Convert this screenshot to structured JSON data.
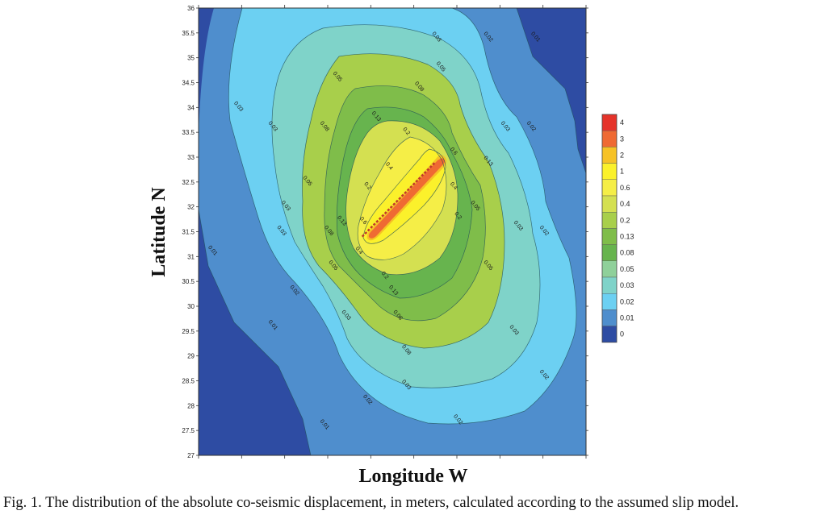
{
  "chart_data": {
    "type": "contour",
    "xlabel": "Longitude W",
    "ylabel": "Latitude N",
    "xlim": [
      -11.0,
      -2.0
    ],
    "ylim": [
      27,
      36
    ],
    "y_ticks": [
      "27",
      "27.5",
      "28",
      "28.5",
      "29",
      "29.5",
      "30",
      "30.5",
      "31",
      "31.5",
      "32",
      "32.5",
      "33",
      "33.5",
      "34",
      "34.5",
      "35",
      "35.5",
      "36"
    ],
    "x_tick_count": 10,
    "legend": {
      "levels": [
        "4",
        "3",
        "2",
        "1",
        "0.6",
        "0.4",
        "0.2",
        "0.13",
        "0.08",
        "0.05",
        "0.03",
        "0.02",
        "0.01",
        "0"
      ],
      "colors": [
        "#e5332a",
        "#ef6a33",
        "#f6c226",
        "#fbf12b",
        "#f5ee47",
        "#d4e051",
        "#a8cf4b",
        "#7fbd4a",
        "#67b44e",
        "#8fd09a",
        "#7fd3c9",
        "#6cd0f2",
        "#4f8ecd",
        "#2e4ca3"
      ]
    },
    "fault": {
      "from": [
        -7.2,
        31.4
      ],
      "to": [
        -5.5,
        32.9
      ]
    },
    "contour_labels": [
      {
        "text": "0.03",
        "x": -5.5,
        "y": 35.4
      },
      {
        "text": "0.02",
        "x": -4.3,
        "y": 35.4
      },
      {
        "text": "0.01",
        "x": -3.2,
        "y": 35.4
      },
      {
        "text": "0.05",
        "x": -7.8,
        "y": 34.6
      },
      {
        "text": "0.05",
        "x": -5.4,
        "y": 34.8
      },
      {
        "text": "0.08",
        "x": -5.9,
        "y": 34.4
      },
      {
        "text": "0.03",
        "x": -10.1,
        "y": 34.0
      },
      {
        "text": "0.03",
        "x": -9.3,
        "y": 33.6
      },
      {
        "text": "0.08",
        "x": -8.1,
        "y": 33.6
      },
      {
        "text": "0.13",
        "x": -6.9,
        "y": 33.8
      },
      {
        "text": "0.2",
        "x": -6.2,
        "y": 33.5
      },
      {
        "text": "0.03",
        "x": -3.9,
        "y": 33.6
      },
      {
        "text": "0.02",
        "x": -3.3,
        "y": 33.6
      },
      {
        "text": "0.4",
        "x": -6.6,
        "y": 32.8
      },
      {
        "text": "0.6",
        "x": -5.1,
        "y": 33.1
      },
      {
        "text": "0.13",
        "x": -4.3,
        "y": 32.9
      },
      {
        "text": "0.05",
        "x": -4.6,
        "y": 32.0
      },
      {
        "text": "0.2",
        "x": -7.1,
        "y": 32.4
      },
      {
        "text": "0.4",
        "x": -5.1,
        "y": 32.4
      },
      {
        "text": "0.2",
        "x": -5.0,
        "y": 31.8
      },
      {
        "text": "0.05",
        "x": -8.5,
        "y": 32.5
      },
      {
        "text": "0.03",
        "x": -9.0,
        "y": 32.0
      },
      {
        "text": "0.13",
        "x": -7.7,
        "y": 31.7
      },
      {
        "text": "0.6",
        "x": -7.2,
        "y": 31.7
      },
      {
        "text": "0.08",
        "x": -8.0,
        "y": 31.5
      },
      {
        "text": "0.4",
        "x": -7.3,
        "y": 31.1
      },
      {
        "text": "0.03",
        "x": -9.1,
        "y": 31.5
      },
      {
        "text": "0.01",
        "x": -10.7,
        "y": 31.1
      },
      {
        "text": "0.05",
        "x": -7.9,
        "y": 30.8
      },
      {
        "text": "0.2",
        "x": -6.7,
        "y": 30.6
      },
      {
        "text": "0.13",
        "x": -6.5,
        "y": 30.3
      },
      {
        "text": "0.03",
        "x": -3.6,
        "y": 31.6
      },
      {
        "text": "0.02",
        "x": -3.0,
        "y": 31.5
      },
      {
        "text": "0.05",
        "x": -4.3,
        "y": 30.8
      },
      {
        "text": "0.02",
        "x": -8.8,
        "y": 30.3
      },
      {
        "text": "0.03",
        "x": -7.6,
        "y": 29.8
      },
      {
        "text": "0.08",
        "x": -6.4,
        "y": 29.8
      },
      {
        "text": "0.01",
        "x": -9.3,
        "y": 29.6
      },
      {
        "text": "0.08",
        "x": -6.2,
        "y": 29.1
      },
      {
        "text": "0.03",
        "x": -3.7,
        "y": 29.5
      },
      {
        "text": "0.02",
        "x": -3.0,
        "y": 28.6
      },
      {
        "text": "0.03",
        "x": -6.2,
        "y": 28.4
      },
      {
        "text": "0.02",
        "x": -7.1,
        "y": 28.1
      },
      {
        "text": "0.02",
        "x": -5.0,
        "y": 27.7
      },
      {
        "text": "0.01",
        "x": -8.1,
        "y": 27.6
      }
    ]
  },
  "caption": "Fig. 1. The distribution of the absolute co-seismic displacement, in meters, calculated according to the assumed slip model."
}
